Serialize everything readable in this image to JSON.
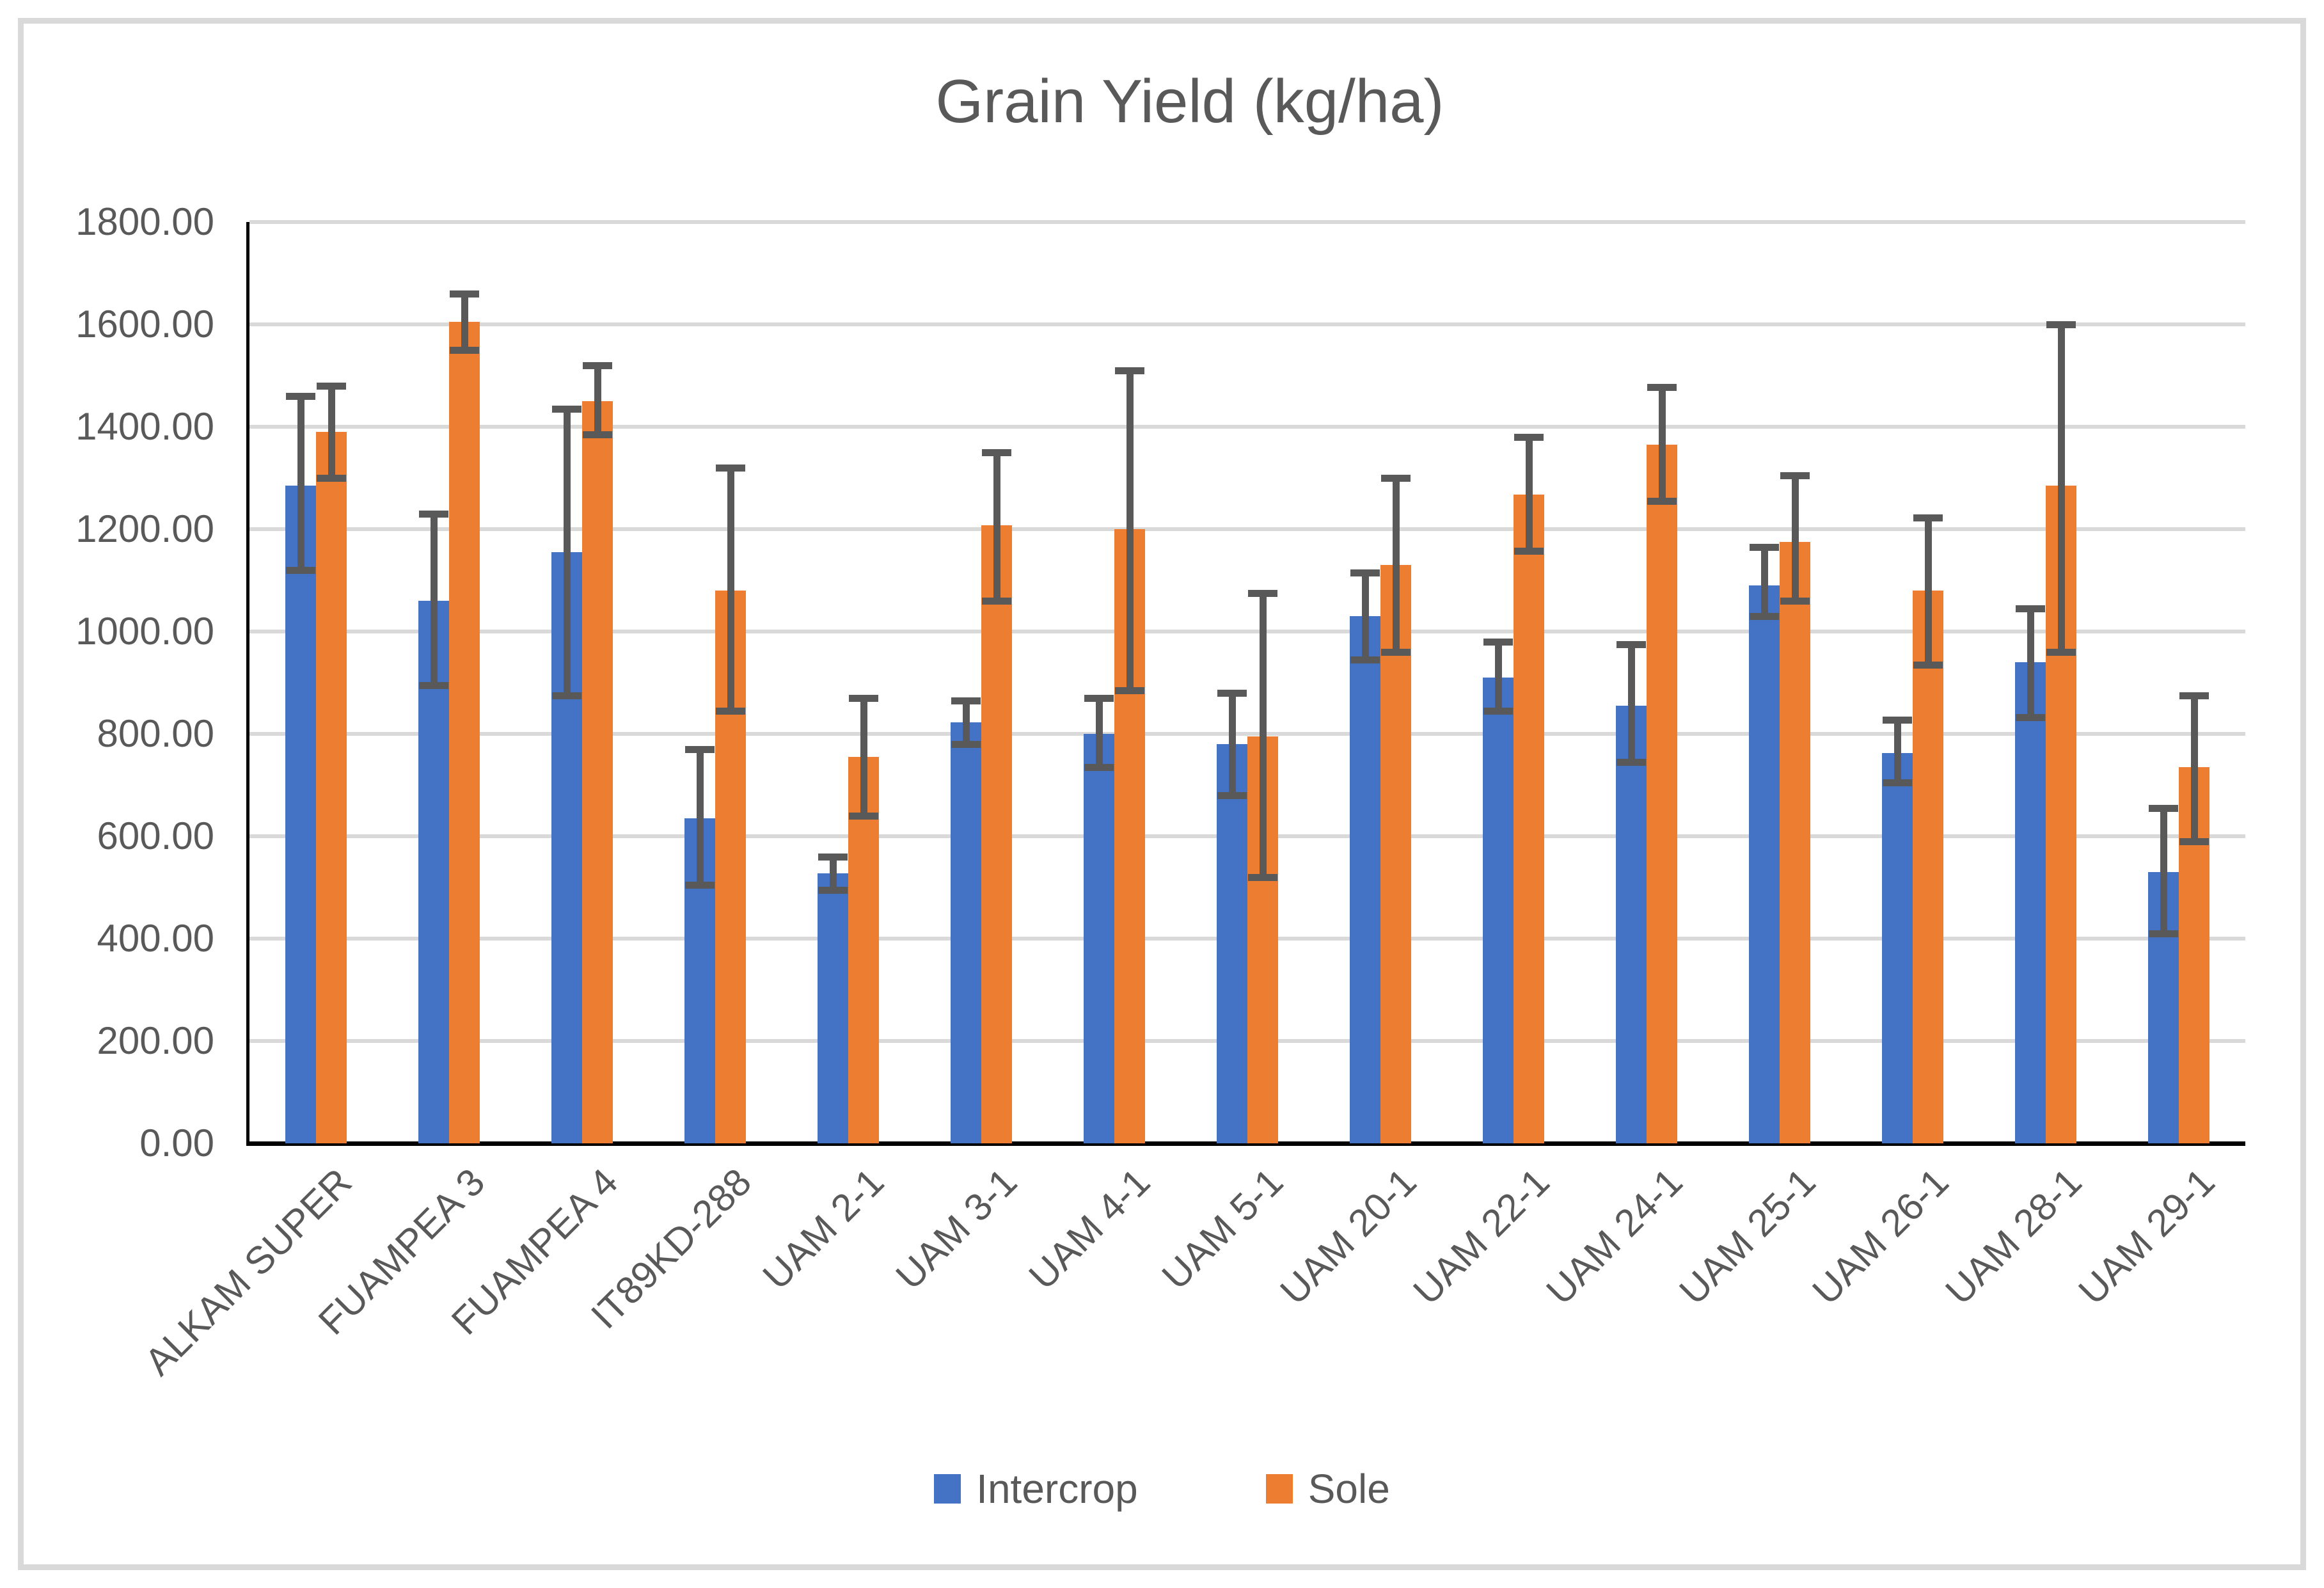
{
  "title": "Grain Yield (kg/ha)",
  "legend": {
    "items": [
      {
        "label": "Intercrop",
        "color": "#4472C4"
      },
      {
        "label": "Sole",
        "color": "#ED7D31"
      }
    ]
  },
  "chart_data": {
    "type": "bar",
    "title": "Grain Yield (kg/ha)",
    "categories": [
      "ALKAM SUPER",
      "FUAMPEA 3",
      "FUAMPEA 4",
      "IT89KD-288",
      "UAM 2-1",
      "UAM 3-1",
      "UAM 4-1",
      "UAM 5-1",
      "UAM 20-1",
      "UAM 22-1",
      "UAM 24-1",
      "UAM 25-1",
      "UAM 26-1",
      "UAM 28-1",
      "UAM 29-1"
    ],
    "series": [
      {
        "name": "Intercrop",
        "color": "#4472C4",
        "values": [
          1285,
          1060,
          1155,
          635,
          527,
          822,
          800,
          780,
          1030,
          910,
          855,
          1090,
          762,
          940,
          530
        ],
        "error_low": [
          1120,
          895,
          875,
          505,
          495,
          780,
          735,
          680,
          945,
          845,
          745,
          1030,
          705,
          833,
          410
        ],
        "error_high": [
          1460,
          1230,
          1435,
          770,
          560,
          865,
          870,
          880,
          1115,
          980,
          975,
          1165,
          828,
          1045,
          655
        ]
      },
      {
        "name": "Sole",
        "color": "#ED7D31",
        "values": [
          1390,
          1605,
          1450,
          1080,
          755,
          1208,
          1200,
          795,
          1130,
          1267,
          1365,
          1175,
          1080,
          1285,
          735
        ],
        "error_low": [
          1300,
          1550,
          1385,
          845,
          640,
          1060,
          885,
          520,
          960,
          1157,
          1255,
          1060,
          935,
          960,
          590
        ],
        "error_high": [
          1480,
          1660,
          1520,
          1320,
          870,
          1350,
          1510,
          1075,
          1300,
          1380,
          1478,
          1305,
          1222,
          1600,
          875
        ]
      }
    ],
    "xlabel": "",
    "ylabel": "",
    "ylim": [
      0,
      1800
    ],
    "y_tick_step": 200,
    "y_tick_labels": [
      "0.00",
      "200.00",
      "400.00",
      "600.00",
      "800.00",
      "1000.00",
      "1200.00",
      "1400.00",
      "1600.00",
      "1800.00"
    ],
    "grid": true,
    "legend_position": "bottom",
    "styles": {
      "grid_color": "#D9D9D9",
      "axis_color": "#000000",
      "text_color": "#595959",
      "error_bar_color": "#595959",
      "frame_color": "#D9D9D9",
      "background": "#FFFFFF"
    }
  }
}
